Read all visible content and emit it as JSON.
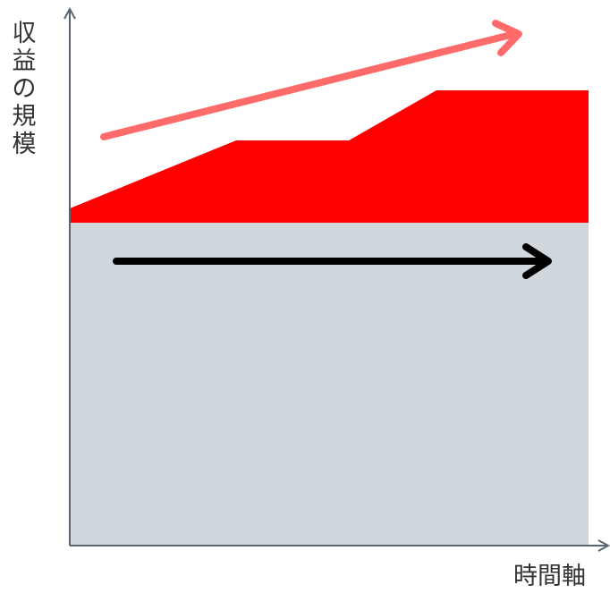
{
  "axes": {
    "y_label": "収益の規模",
    "x_label": "時間軸"
  },
  "colors": {
    "axis": "#5a6470",
    "base_area": "#d0d7dd",
    "growth_area": "#ff0000",
    "growth_arrow": "#ff6b6b",
    "flat_arrow": "#000000"
  }
}
